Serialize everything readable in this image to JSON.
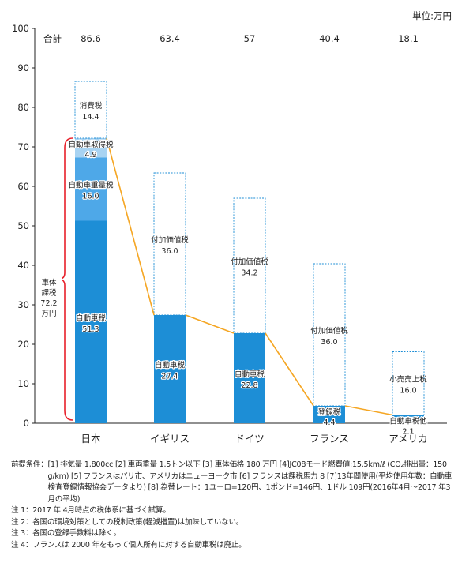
{
  "chart_data": {
    "type": "bar",
    "unit_label": "単位:万円",
    "total_label": "合計",
    "ylim": [
      0,
      100
    ],
    "yticks": [
      0,
      10,
      20,
      30,
      40,
      50,
      60,
      70,
      80,
      90,
      100
    ],
    "categories": [
      "日本",
      "イギリス",
      "ドイツ",
      "フランス",
      "アメリカ"
    ],
    "totals": [
      "86.6",
      "63.4",
      "57",
      "40.4",
      "18.1"
    ],
    "countries": [
      {
        "name": "日本",
        "segments": [
          {
            "label": "自動車税",
            "value": 51.3,
            "value_label": "51.3",
            "style": "solid",
            "color": "#1d8ed6"
          },
          {
            "label": "自動車重量税",
            "value": 16.0,
            "value_label": "16.0",
            "style": "light",
            "color": "#4ea8e8"
          },
          {
            "label": "自動車取得税",
            "value": 4.9,
            "value_label": "4.9",
            "style": "pale",
            "color": "#a8d3f2"
          },
          {
            "label": "消費税",
            "value": 14.4,
            "value_label": "14.4",
            "style": "dashed",
            "color": "#ffffff"
          }
        ]
      },
      {
        "name": "イギリス",
        "segments": [
          {
            "label": "自動車税",
            "value": 27.4,
            "value_label": "27.4",
            "style": "solid",
            "color": "#1d8ed6"
          },
          {
            "label": "付加価値税",
            "value": 36.0,
            "value_label": "36.0",
            "style": "dashed",
            "color": "#ffffff"
          }
        ]
      },
      {
        "name": "ドイツ",
        "segments": [
          {
            "label": "自動車税",
            "value": 22.8,
            "value_label": "22.8",
            "style": "solid",
            "color": "#1d8ed6"
          },
          {
            "label": "付加価値税",
            "value": 34.2,
            "value_label": "34.2",
            "style": "dashed",
            "color": "#ffffff"
          }
        ]
      },
      {
        "name": "フランス",
        "segments": [
          {
            "label": "登録税",
            "value": 4.4,
            "value_label": "4.4",
            "style": "solid",
            "color": "#1d8ed6"
          },
          {
            "label": "付加価値税",
            "value": 36.0,
            "value_label": "36.0",
            "style": "dashed",
            "color": "#ffffff"
          }
        ]
      },
      {
        "name": "アメリカ",
        "segments": [
          {
            "label": "自動車税他",
            "value": 2.1,
            "value_label": "2.1",
            "style": "solid",
            "color": "#1d8ed6"
          },
          {
            "label": "小売売上税",
            "value": 16.0,
            "value_label": "16.0",
            "style": "dashed",
            "color": "#ffffff"
          }
        ]
      }
    ],
    "connector_line": {
      "color": "#f5a623",
      "values": [
        72.2,
        27.4,
        22.8,
        4.4,
        2.1
      ]
    },
    "bracket": {
      "from": 0,
      "to": 72.2,
      "color": "#e8202a",
      "label": [
        "車体",
        "課税",
        "72.2",
        "万円"
      ]
    },
    "colors": {
      "solid": "#1d8ed6",
      "light": "#4ea8e8",
      "pale": "#a8d3f2",
      "dashed_border": "#1d8ed6",
      "axis": "#222222"
    }
  },
  "notes": {
    "conditions_label": "前提条件：",
    "conditions_text": "[1] 排気量 1,800cc [2] 車両重量 1.5トン以下 [3] 車体価格 180 万円 [4]JC08モード燃費値:15.5km/ℓ (CO₂排出量：150 g/km) [5] フランスはパリ市、アメリカはニューヨーク市 [6] フランスは課税馬力 8 [7]13年間使用(平均使用年数：自動車検査登録情報協会データより) [8] 為替レート：1ユーロ=120円、1ポンド=146円、1ドル 109円(2016年4月～2017 年3月の平均)",
    "items": [
      "注 1：2017 年 4月時点の税体系に基づく試算。",
      "注 2：各国の環境対策としての税制政策(軽減措置)は加味していない。",
      "注 3：各国の登録手数料は除く。",
      "注 4：フランスは 2000 年をもって個人所有に対する自動車税は廃止。"
    ]
  }
}
